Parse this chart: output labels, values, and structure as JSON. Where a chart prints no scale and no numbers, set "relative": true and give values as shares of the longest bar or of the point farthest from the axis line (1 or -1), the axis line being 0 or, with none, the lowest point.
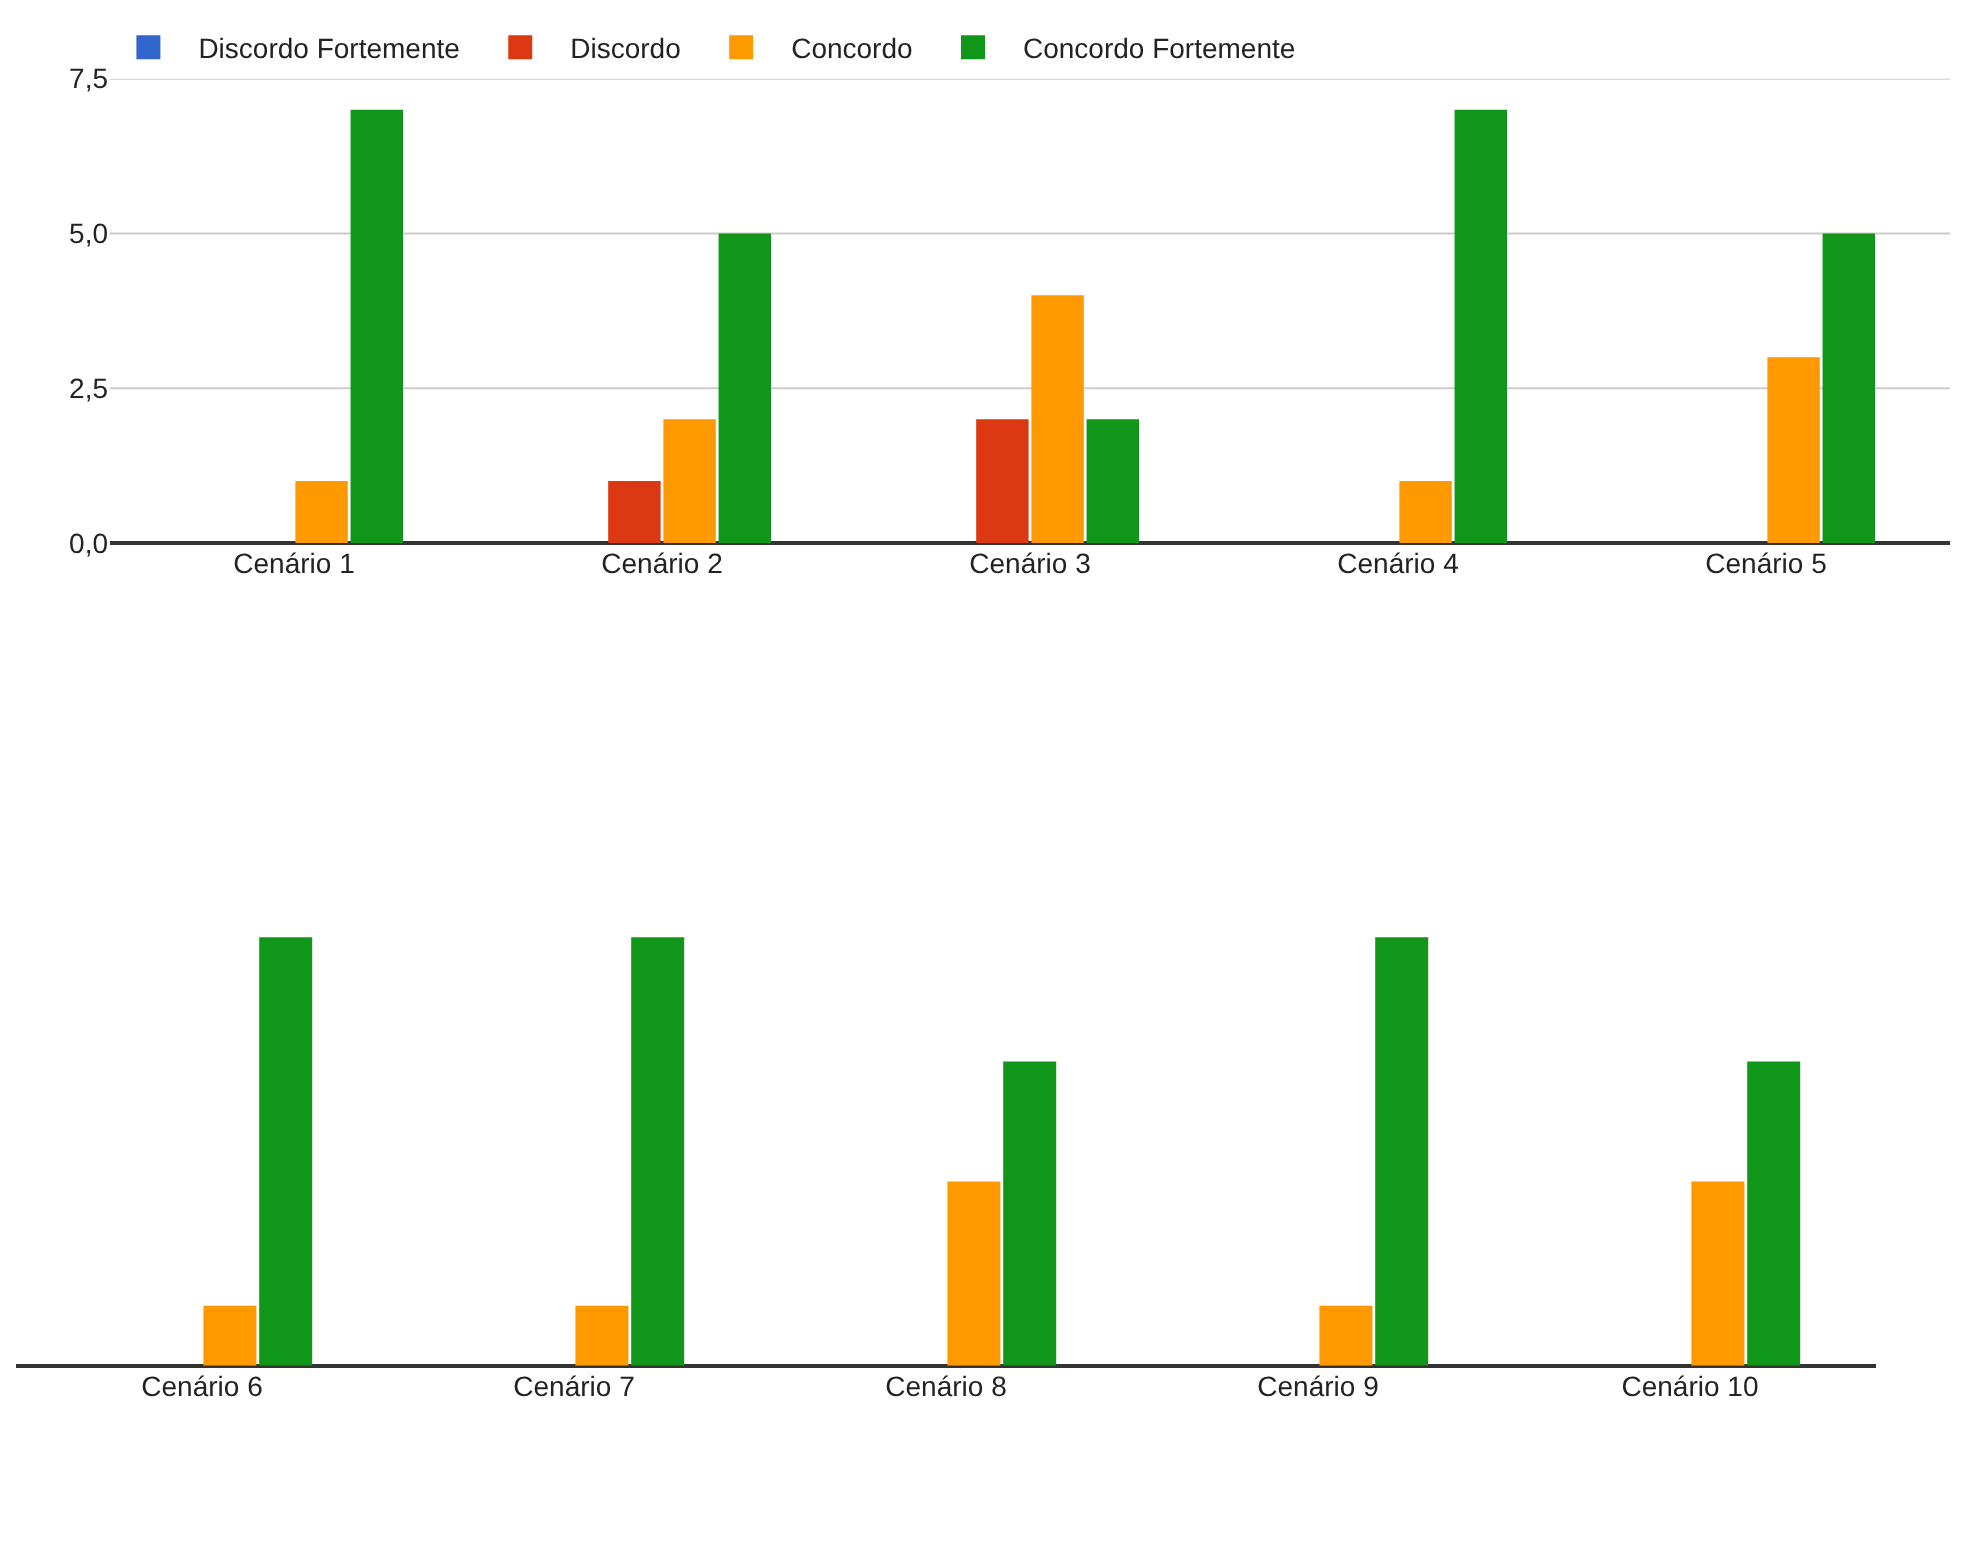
{
  "chart_data": [
    {
      "type": "bar",
      "categories": [
        "Cenário 1",
        "Cenário 2",
        "Cenário 3",
        "Cenário 4",
        "Cenário 5"
      ],
      "series": [
        {
          "name": "Discordo Fortemente",
          "color": "#3366cc",
          "values": [
            0,
            0,
            0,
            0,
            0
          ]
        },
        {
          "name": "Discordo",
          "color": "#dc3912",
          "values": [
            0,
            1,
            2,
            0,
            0
          ]
        },
        {
          "name": "Concordo",
          "color": "#ff9900",
          "values": [
            1,
            2,
            4,
            1,
            3
          ]
        },
        {
          "name": "Concordo Fortemente",
          "color": "#109618",
          "values": [
            7,
            5,
            2,
            7,
            5
          ]
        }
      ],
      "ylim": [
        0,
        7.5
      ],
      "yticks": [
        {
          "value": 0,
          "label": "0,0"
        },
        {
          "value": 2.5,
          "label": "2,5"
        },
        {
          "value": 5,
          "label": "5,0"
        },
        {
          "value": 7.5,
          "label": "7,5"
        }
      ],
      "grid": "y",
      "legend": "top"
    },
    {
      "type": "bar",
      "categories": [
        "Cenário 6",
        "Cenário 7",
        "Cenário 8",
        "Cenário 9",
        "Cenário 10"
      ],
      "series": [
        {
          "color": "#3366cc",
          "values": [
            0,
            0,
            0,
            0,
            0
          ]
        },
        {
          "color": "#dc3912",
          "values": [
            0,
            0,
            0,
            0,
            0
          ]
        },
        {
          "color": "#ff9900",
          "values": [
            0.14,
            0.14,
            0.43,
            0.14,
            0.43
          ]
        },
        {
          "color": "#109618",
          "values": [
            1,
            1,
            0.71,
            1,
            0.71
          ]
        }
      ],
      "relative": true,
      "legend": false
    }
  ]
}
